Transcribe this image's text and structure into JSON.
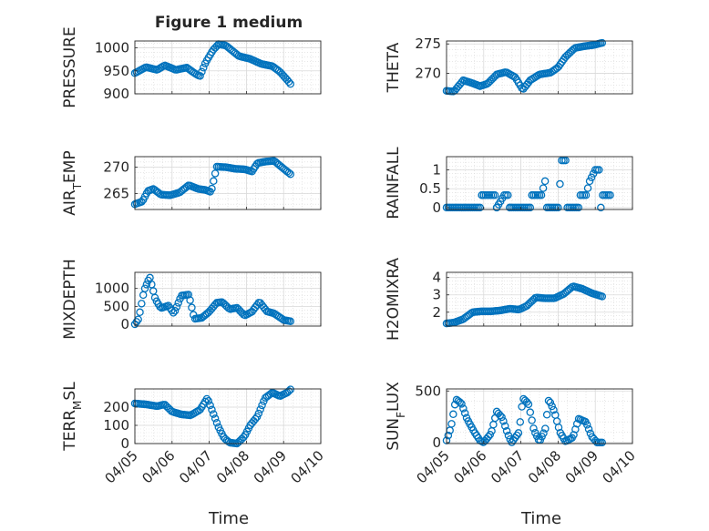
{
  "figure": {
    "title": "Figure 1 medium",
    "xlabel": "Time",
    "marker_color": "#0072BD",
    "axis_color": "#262626",
    "grid_color": "#d9d9d9",
    "x_ticks": [
      "04/05",
      "04/06",
      "04/07",
      "04/08",
      "04/09",
      "04/10"
    ]
  },
  "chart_data": [
    {
      "type": "scatter",
      "ylabel": "PRESSURE",
      "ylim": [
        900,
        1015
      ],
      "yticks": [
        900,
        950,
        1000
      ],
      "x_range_days": [
        0,
        5
      ],
      "keypoints": [
        [
          0,
          945
        ],
        [
          0.3,
          958
        ],
        [
          0.6,
          952
        ],
        [
          0.8,
          962
        ],
        [
          1.1,
          952
        ],
        [
          1.4,
          957
        ],
        [
          1.6,
          945
        ],
        [
          1.75,
          938
        ],
        [
          1.9,
          968
        ],
        [
          2.1,
          995
        ],
        [
          2.25,
          1008
        ],
        [
          2.45,
          1005
        ],
        [
          2.6,
          995
        ],
        [
          2.8,
          982
        ],
        [
          3.1,
          976
        ],
        [
          3.4,
          965
        ],
        [
          3.7,
          960
        ],
        [
          3.9,
          948
        ],
        [
          4.1,
          930
        ],
        [
          4.2,
          920
        ]
      ],
      "grid": true
    },
    {
      "type": "scatter",
      "ylabel": "THETA",
      "ylim": [
        266.5,
        275.5
      ],
      "yticks": [
        270,
        275
      ],
      "x_range_days": [
        0,
        5
      ],
      "keypoints": [
        [
          0,
          267
        ],
        [
          0.2,
          266.9
        ],
        [
          0.45,
          268.8
        ],
        [
          0.7,
          268.3
        ],
        [
          0.9,
          267.8
        ],
        [
          1.1,
          268.2
        ],
        [
          1.35,
          269.8
        ],
        [
          1.6,
          270.2
        ],
        [
          1.85,
          269.3
        ],
        [
          2.05,
          267.2
        ],
        [
          2.25,
          268.8
        ],
        [
          2.5,
          269.8
        ],
        [
          2.8,
          270.1
        ],
        [
          3.0,
          271
        ],
        [
          3.2,
          272.8
        ],
        [
          3.45,
          274.3
        ],
        [
          3.7,
          274.6
        ],
        [
          3.95,
          274.8
        ],
        [
          4.2,
          275.2
        ]
      ],
      "grid": true
    },
    {
      "type": "scatter",
      "ylabel": "AIR_TEMP",
      "ylim": [
        262,
        272
      ],
      "yticks": [
        265,
        270
      ],
      "x_range_days": [
        0,
        5
      ],
      "keypoints": [
        [
          0,
          263
        ],
        [
          0.2,
          263.5
        ],
        [
          0.35,
          265.5
        ],
        [
          0.5,
          265.9
        ],
        [
          0.7,
          264.8
        ],
        [
          0.95,
          264.7
        ],
        [
          1.2,
          265.2
        ],
        [
          1.45,
          266.6
        ],
        [
          1.7,
          265.9
        ],
        [
          1.9,
          265.7
        ],
        [
          2.05,
          265.3
        ],
        [
          2.2,
          270.1
        ],
        [
          2.45,
          270
        ],
        [
          2.7,
          269.7
        ],
        [
          2.95,
          269.6
        ],
        [
          3.15,
          269.2
        ],
        [
          3.3,
          270.8
        ],
        [
          3.55,
          271.1
        ],
        [
          3.75,
          271.2
        ],
        [
          3.95,
          270
        ],
        [
          4.2,
          268.6
        ]
      ],
      "grid": true
    },
    {
      "type": "scatter",
      "ylabel": "RAINFALL",
      "ylim": [
        -0.05,
        1.35
      ],
      "yticks": [
        0,
        0.5,
        1
      ],
      "x_range_days": [
        0,
        5
      ],
      "keypoints": [
        [
          0,
          0
        ],
        [
          0.95,
          0
        ],
        [
          0.95,
          0.33
        ],
        [
          1.35,
          0.33
        ],
        [
          1.35,
          0.0
        ],
        [
          1.55,
          0.33
        ],
        [
          1.7,
          0.33
        ],
        [
          1.7,
          0
        ],
        [
          2.3,
          0
        ],
        [
          2.3,
          0.33
        ],
        [
          2.55,
          0.33
        ],
        [
          2.65,
          0.7
        ],
        [
          2.7,
          0
        ],
        [
          3.0,
          0
        ],
        [
          3.1,
          1.25
        ],
        [
          3.2,
          1.25
        ],
        [
          3.25,
          0
        ],
        [
          3.55,
          0
        ],
        [
          3.6,
          0.33
        ],
        [
          3.75,
          0.33
        ],
        [
          3.85,
          0.7
        ],
        [
          4.0,
          1.0
        ],
        [
          4.1,
          1.0
        ],
        [
          4.15,
          0.0
        ],
        [
          4.2,
          0.33
        ],
        [
          4.4,
          0.33
        ]
      ],
      "grid": true
    },
    {
      "type": "scatter",
      "ylabel": "MIXDEPTH",
      "ylim": [
        -50,
        1450
      ],
      "yticks": [
        0,
        500,
        1000
      ],
      "x_range_days": [
        0,
        5
      ],
      "keypoints": [
        [
          0,
          0
        ],
        [
          0.1,
          150
        ],
        [
          0.25,
          950
        ],
        [
          0.4,
          1320
        ],
        [
          0.55,
          700
        ],
        [
          0.7,
          450
        ],
        [
          0.9,
          520
        ],
        [
          1.05,
          300
        ],
        [
          1.25,
          800
        ],
        [
          1.45,
          830
        ],
        [
          1.6,
          150
        ],
        [
          1.8,
          180
        ],
        [
          2.0,
          350
        ],
        [
          2.2,
          600
        ],
        [
          2.35,
          620
        ],
        [
          2.55,
          420
        ],
        [
          2.75,
          460
        ],
        [
          2.95,
          240
        ],
        [
          3.15,
          350
        ],
        [
          3.35,
          630
        ],
        [
          3.55,
          360
        ],
        [
          3.75,
          300
        ],
        [
          4.0,
          120
        ],
        [
          4.2,
          80
        ]
      ],
      "grid": true
    },
    {
      "type": "scatter",
      "ylabel": "H2OMIXRA",
      "ylim": [
        1.2,
        4.3
      ],
      "yticks": [
        2,
        3,
        4
      ],
      "x_range_days": [
        0,
        5
      ],
      "keypoints": [
        [
          0,
          1.35
        ],
        [
          0.2,
          1.4
        ],
        [
          0.45,
          1.6
        ],
        [
          0.7,
          2.0
        ],
        [
          0.95,
          2.05
        ],
        [
          1.2,
          2.05
        ],
        [
          1.45,
          2.1
        ],
        [
          1.7,
          2.2
        ],
        [
          1.95,
          2.15
        ],
        [
          2.15,
          2.35
        ],
        [
          2.4,
          2.85
        ],
        [
          2.65,
          2.8
        ],
        [
          2.9,
          2.8
        ],
        [
          3.15,
          3.05
        ],
        [
          3.4,
          3.5
        ],
        [
          3.65,
          3.35
        ],
        [
          3.9,
          3.1
        ],
        [
          4.2,
          2.9
        ]
      ],
      "grid": true
    },
    {
      "type": "scatter",
      "ylabel": "TERR_MSL",
      "ylim": [
        0,
        300
      ],
      "yticks": [
        0,
        100,
        200
      ],
      "x_range_days": [
        0,
        5
      ],
      "keypoints": [
        [
          0,
          220
        ],
        [
          0.3,
          215
        ],
        [
          0.6,
          205
        ],
        [
          0.8,
          215
        ],
        [
          1.0,
          175
        ],
        [
          1.25,
          160
        ],
        [
          1.5,
          155
        ],
        [
          1.75,
          185
        ],
        [
          1.95,
          250
        ],
        [
          2.1,
          170
        ],
        [
          2.25,
          90
        ],
        [
          2.4,
          30
        ],
        [
          2.55,
          5
        ],
        [
          2.75,
          0
        ],
        [
          2.95,
          40
        ],
        [
          3.1,
          100
        ],
        [
          3.3,
          150
        ],
        [
          3.5,
          250
        ],
        [
          3.7,
          280
        ],
        [
          3.9,
          260
        ],
        [
          4.1,
          280
        ],
        [
          4.2,
          300
        ]
      ],
      "grid": true
    },
    {
      "type": "scatter",
      "ylabel": "SUN_FLUX",
      "ylim": [
        -10,
        520
      ],
      "yticks": [
        0,
        500
      ],
      "x_range_days": [
        0,
        5
      ],
      "keypoints": [
        [
          0,
          20
        ],
        [
          0.12,
          150
        ],
        [
          0.25,
          420
        ],
        [
          0.4,
          380
        ],
        [
          0.55,
          230
        ],
        [
          0.75,
          100
        ],
        [
          0.9,
          20
        ],
        [
          1.0,
          0
        ],
        [
          1.2,
          90
        ],
        [
          1.35,
          300
        ],
        [
          1.5,
          240
        ],
        [
          1.65,
          80
        ],
        [
          1.75,
          0
        ],
        [
          1.95,
          100
        ],
        [
          2.05,
          430
        ],
        [
          2.2,
          380
        ],
        [
          2.35,
          120
        ],
        [
          2.5,
          10
        ],
        [
          2.65,
          120
        ],
        [
          2.75,
          420
        ],
        [
          2.9,
          300
        ],
        [
          3.05,
          100
        ],
        [
          3.2,
          10
        ],
        [
          3.4,
          50
        ],
        [
          3.55,
          230
        ],
        [
          3.75,
          200
        ],
        [
          3.9,
          60
        ],
        [
          4.05,
          0
        ],
        [
          4.2,
          0
        ]
      ],
      "grid": true
    }
  ]
}
